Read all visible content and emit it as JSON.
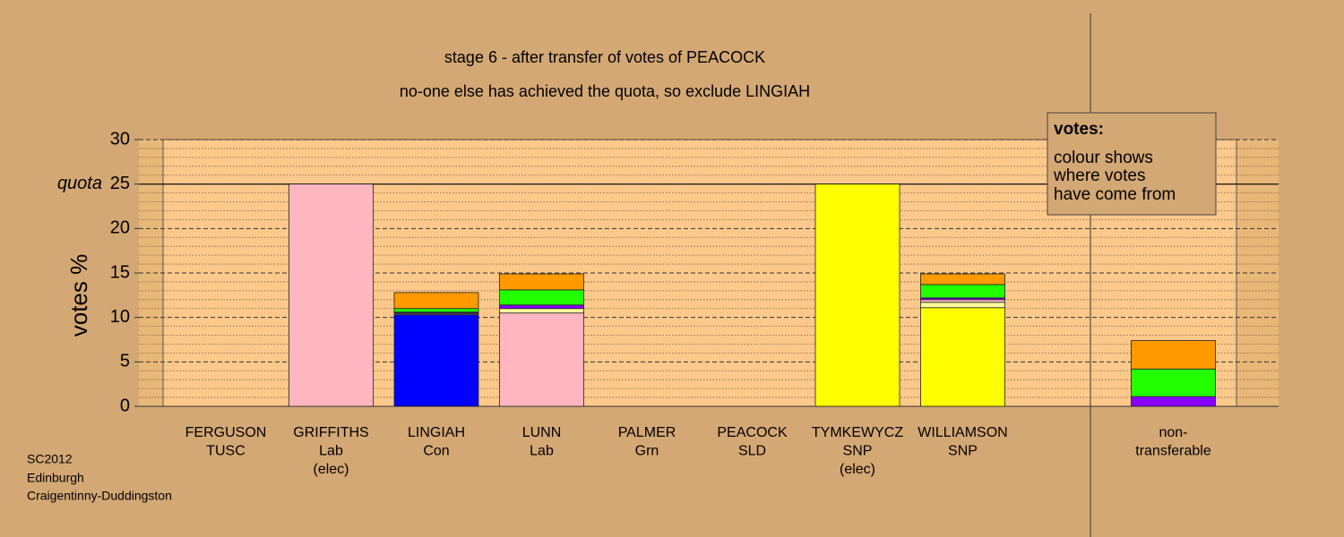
{
  "chart_data": {
    "type": "stacked_bar",
    "title": "stage 6 - after transfer of votes of PEACOCK",
    "subtitle": "no-one else has achieved the quota, so exclude LINGIAH",
    "y_label": "votes %",
    "categories": [
      [
        "FERGUSON",
        "TUSC"
      ],
      [
        "GRIFFITHS",
        "Lab",
        "(elec)"
      ],
      [
        "LINGIAH",
        "Con"
      ],
      [
        "LUNN",
        "Lab"
      ],
      [
        "PALMER",
        "Grn"
      ],
      [
        "PEACOCK",
        "SLD"
      ],
      [
        "TYMKEWYCZ",
        "SNP",
        "(elec)"
      ],
      [
        "WILLIAMSON",
        "SNP"
      ],
      null,
      [
        "non-",
        "transferable"
      ]
    ],
    "series": [
      {
        "color": "#0000ff",
        "values": [
          0,
          0,
          10.3,
          0,
          0,
          0,
          0,
          0,
          null,
          0
        ]
      },
      {
        "color": "#ffb6c1",
        "values": [
          0,
          25,
          0,
          10.5,
          0,
          0,
          0,
          0,
          null,
          0
        ]
      },
      {
        "color": "#ffff00",
        "values": [
          0,
          0,
          0,
          0,
          0,
          0,
          25,
          11.1,
          null,
          0
        ]
      },
      {
        "color": "#ffff99",
        "values": [
          0,
          0,
          0.1,
          0.5,
          0,
          0,
          0,
          0.6,
          null,
          0
        ]
      },
      {
        "color": "#ffc0cb",
        "values": [
          0,
          0,
          0.1,
          0,
          0,
          0,
          0,
          0.3,
          null,
          0
        ]
      },
      {
        "color": "#8800ff",
        "values": [
          0,
          0,
          0.1,
          0.4,
          0,
          0,
          0,
          0.2,
          null,
          1.1
        ]
      },
      {
        "color": "#22ff00",
        "values": [
          0,
          0,
          0.4,
          1.7,
          0,
          0,
          0,
          1.5,
          null,
          3.1
        ]
      },
      {
        "color": "#ff9900",
        "values": [
          0,
          0,
          1.8,
          1.8,
          0,
          0,
          0,
          1.2,
          null,
          3.2
        ]
      }
    ],
    "ylim": [
      0,
      30
    ],
    "yticks": [
      0,
      5,
      10,
      15,
      20,
      25,
      30
    ],
    "yminorticks": [
      1,
      2,
      3,
      4,
      6,
      7,
      8,
      9,
      11,
      12,
      13,
      14,
      16,
      17,
      18,
      19,
      21,
      22,
      23,
      24,
      26,
      27,
      28,
      29
    ],
    "quota": {
      "value": 25,
      "label": "quota"
    },
    "legend": {
      "title": "votes:",
      "lines": [
        "colour shows",
        "where votes",
        "have come from"
      ]
    },
    "footer": [
      "SC2012",
      "Edinburgh",
      "Craigentinny-Duddingston"
    ]
  }
}
